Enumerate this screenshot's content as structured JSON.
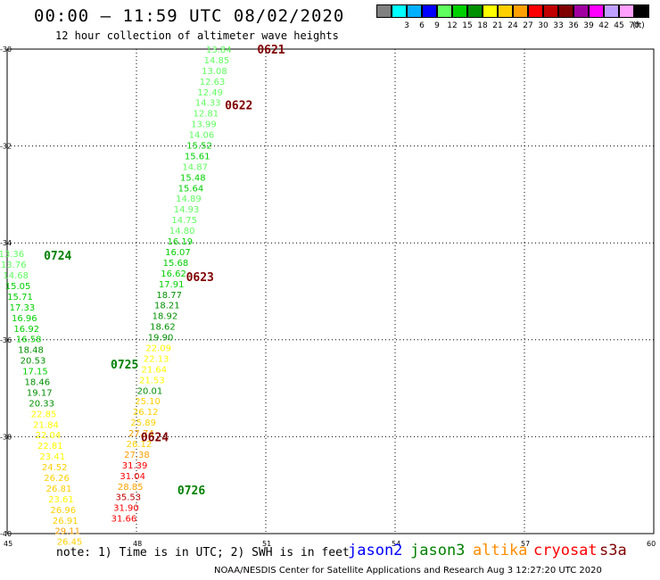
{
  "header": {
    "title": "00:00 – 11:59 UTC 08/02/2020",
    "subtitle": "12 hour collection of altimeter wave heights"
  },
  "legend": {
    "unit": "(ft)",
    "bins": [
      {
        "label": "",
        "color": "#808080"
      },
      {
        "label": "3",
        "color": "#00ffff"
      },
      {
        "label": "6",
        "color": "#00b0ff"
      },
      {
        "label": "9",
        "color": "#0000ff"
      },
      {
        "label": "12",
        "color": "#60ff60"
      },
      {
        "label": "15",
        "color": "#00d000"
      },
      {
        "label": "18",
        "color": "#009000"
      },
      {
        "label": "21",
        "color": "#ffff00"
      },
      {
        "label": "24",
        "color": "#ffd000"
      },
      {
        "label": "27",
        "color": "#ffa000"
      },
      {
        "label": "30",
        "color": "#ff0000"
      },
      {
        "label": "33",
        "color": "#c00000"
      },
      {
        "label": "36",
        "color": "#800000"
      },
      {
        "label": "39",
        "color": "#a000a0"
      },
      {
        "label": "42",
        "color": "#ff00ff"
      },
      {
        "label": "45",
        "color": "#c0a0ff"
      },
      {
        "label": "70",
        "color": "#ffa0ff"
      },
      {
        "label": "",
        "color": "#000000"
      }
    ]
  },
  "axes": {
    "x_ticks": [
      "45",
      "48",
      "51",
      "54",
      "57",
      "60"
    ],
    "y_ticks": [
      "-30",
      "-32",
      "-34",
      "-36",
      "-38",
      "-40"
    ]
  },
  "time_labels": [
    {
      "text": "0621",
      "lon": 50.8,
      "lat": -30.0,
      "color": "#800000"
    },
    {
      "text": "0622",
      "lon": 50.05,
      "lat": -31.15,
      "color": "#800000"
    },
    {
      "text": "0623",
      "lon": 49.15,
      "lat": -34.7,
      "color": "#800000"
    },
    {
      "text": "0624",
      "lon": 48.1,
      "lat": -38.0,
      "color": "#800000"
    },
    {
      "text": "0724",
      "lon": 45.85,
      "lat": -34.25,
      "color": "#008000"
    },
    {
      "text": "0725",
      "lon": 47.4,
      "lat": -36.5,
      "color": "#008000"
    },
    {
      "text": "0726",
      "lon": 48.95,
      "lat": -39.1,
      "color": "#008000"
    }
  ],
  "tracks": [
    {
      "name": "0621–0624 pass",
      "points": [
        {
          "v": "13.84",
          "lon": 49.91,
          "lat": -30.0,
          "c": "#60ff60"
        },
        {
          "v": "14.85",
          "lon": 49.86,
          "lat": -30.22,
          "c": "#60ff60"
        },
        {
          "v": "13.08",
          "lon": 49.81,
          "lat": -30.44,
          "c": "#60ff60"
        },
        {
          "v": "12.63",
          "lon": 49.76,
          "lat": -30.66,
          "c": "#60ff60"
        },
        {
          "v": "12.49",
          "lon": 49.71,
          "lat": -30.88,
          "c": "#60ff60"
        },
        {
          "v": "14.33",
          "lon": 49.66,
          "lat": -31.1,
          "c": "#60ff60"
        },
        {
          "v": "12.81",
          "lon": 49.61,
          "lat": -31.32,
          "c": "#60ff60"
        },
        {
          "v": "13.99",
          "lon": 49.56,
          "lat": -31.54,
          "c": "#60ff60"
        },
        {
          "v": "14.06",
          "lon": 49.51,
          "lat": -31.76,
          "c": "#60ff60"
        },
        {
          "v": "15.52",
          "lon": 49.46,
          "lat": -31.98,
          "c": "#00d000"
        },
        {
          "v": "15.61",
          "lon": 49.41,
          "lat": -32.2,
          "c": "#00d000"
        },
        {
          "v": "14.87",
          "lon": 49.36,
          "lat": -32.42,
          "c": "#60ff60"
        },
        {
          "v": "15.48",
          "lon": 49.31,
          "lat": -32.64,
          "c": "#00d000"
        },
        {
          "v": "15.64",
          "lon": 49.26,
          "lat": -32.86,
          "c": "#00d000"
        },
        {
          "v": "14.89",
          "lon": 49.21,
          "lat": -33.08,
          "c": "#60ff60"
        },
        {
          "v": "14.93",
          "lon": 49.16,
          "lat": -33.3,
          "c": "#60ff60"
        },
        {
          "v": "14.75",
          "lon": 49.11,
          "lat": -33.52,
          "c": "#60ff60"
        },
        {
          "v": "14.80",
          "lon": 49.06,
          "lat": -33.74,
          "c": "#60ff60"
        },
        {
          "v": "16.19",
          "lon": 49.01,
          "lat": -33.96,
          "c": "#00d000"
        },
        {
          "v": "16.07",
          "lon": 48.96,
          "lat": -34.18,
          "c": "#00d000"
        },
        {
          "v": "15.68",
          "lon": 48.91,
          "lat": -34.4,
          "c": "#00d000"
        },
        {
          "v": "16.62",
          "lon": 48.86,
          "lat": -34.62,
          "c": "#00d000"
        },
        {
          "v": "17.91",
          "lon": 48.81,
          "lat": -34.84,
          "c": "#00d000"
        },
        {
          "v": "18.77",
          "lon": 48.76,
          "lat": -35.06,
          "c": "#009000"
        },
        {
          "v": "18.21",
          "lon": 48.71,
          "lat": -35.28,
          "c": "#009000"
        },
        {
          "v": "18.92",
          "lon": 48.66,
          "lat": -35.5,
          "c": "#009000"
        },
        {
          "v": "18.62",
          "lon": 48.61,
          "lat": -35.72,
          "c": "#009000"
        },
        {
          "v": "19.90",
          "lon": 48.56,
          "lat": -35.94,
          "c": "#009000"
        },
        {
          "v": "22.09",
          "lon": 48.51,
          "lat": -36.16,
          "c": "#ffff00"
        },
        {
          "v": "22.13",
          "lon": 48.46,
          "lat": -36.38,
          "c": "#ffff00"
        },
        {
          "v": "21.64",
          "lon": 48.41,
          "lat": -36.6,
          "c": "#ffff00"
        },
        {
          "v": "21.53",
          "lon": 48.36,
          "lat": -36.82,
          "c": "#ffff00"
        },
        {
          "v": "20.01",
          "lon": 48.31,
          "lat": -37.04,
          "c": "#009000"
        },
        {
          "v": "25.10",
          "lon": 48.26,
          "lat": -37.26,
          "c": "#ffd000"
        },
        {
          "v": "26.12",
          "lon": 48.21,
          "lat": -37.48,
          "c": "#ffd000"
        },
        {
          "v": "25.89",
          "lon": 48.16,
          "lat": -37.7,
          "c": "#ffd000"
        },
        {
          "v": "27.74",
          "lon": 48.11,
          "lat": -37.92,
          "c": "#ffa000"
        },
        {
          "v": "26.12",
          "lon": 48.06,
          "lat": -38.14,
          "c": "#ffd000"
        },
        {
          "v": "27.38",
          "lon": 48.01,
          "lat": -38.36,
          "c": "#ffa000"
        },
        {
          "v": "31.39",
          "lon": 47.96,
          "lat": -38.58,
          "c": "#ff0000"
        },
        {
          "v": "31.04",
          "lon": 47.91,
          "lat": -38.8,
          "c": "#ff0000"
        },
        {
          "v": "28.85",
          "lon": 47.86,
          "lat": -39.02,
          "c": "#ffa000"
        },
        {
          "v": "35.53",
          "lon": 47.81,
          "lat": -39.24,
          "c": "#c00000"
        },
        {
          "v": "31.90",
          "lon": 47.76,
          "lat": -39.46,
          "c": "#ff0000"
        },
        {
          "v": "31.66",
          "lon": 47.71,
          "lat": -39.68,
          "c": "#ff0000"
        }
      ]
    },
    {
      "name": "0724–0726 pass",
      "points": [
        {
          "v": "13.36",
          "lon": 45.1,
          "lat": -34.22,
          "c": "#60ff60"
        },
        {
          "v": "13.76",
          "lon": 45.15,
          "lat": -34.44,
          "c": "#60ff60"
        },
        {
          "v": "14.68",
          "lon": 45.2,
          "lat": -34.66,
          "c": "#60ff60"
        },
        {
          "v": "15.05",
          "lon": 45.25,
          "lat": -34.88,
          "c": "#00d000"
        },
        {
          "v": "15.71",
          "lon": 45.3,
          "lat": -35.1,
          "c": "#00d000"
        },
        {
          "v": "17.33",
          "lon": 45.35,
          "lat": -35.32,
          "c": "#00d000"
        },
        {
          "v": "16.96",
          "lon": 45.4,
          "lat": -35.54,
          "c": "#00d000"
        },
        {
          "v": "16.92",
          "lon": 45.45,
          "lat": -35.76,
          "c": "#00d000"
        },
        {
          "v": "16.58",
          "lon": 45.5,
          "lat": -35.98,
          "c": "#00d000"
        },
        {
          "v": "18.48",
          "lon": 45.55,
          "lat": -36.2,
          "c": "#009000"
        },
        {
          "v": "20.53",
          "lon": 45.6,
          "lat": -36.42,
          "c": "#009000"
        },
        {
          "v": "17.15",
          "lon": 45.65,
          "lat": -36.64,
          "c": "#00d000"
        },
        {
          "v": "18.46",
          "lon": 45.7,
          "lat": -36.86,
          "c": "#009000"
        },
        {
          "v": "19.17",
          "lon": 45.75,
          "lat": -37.08,
          "c": "#009000"
        },
        {
          "v": "20.33",
          "lon": 45.8,
          "lat": -37.3,
          "c": "#009000"
        },
        {
          "v": "22.85",
          "lon": 45.85,
          "lat": -37.52,
          "c": "#ffff00"
        },
        {
          "v": "21.84",
          "lon": 45.9,
          "lat": -37.74,
          "c": "#ffff00"
        },
        {
          "v": "22.04",
          "lon": 45.95,
          "lat": -37.96,
          "c": "#ffff00"
        },
        {
          "v": "22.81",
          "lon": 46.0,
          "lat": -38.18,
          "c": "#ffff00"
        },
        {
          "v": "23.41",
          "lon": 46.05,
          "lat": -38.4,
          "c": "#ffff00"
        },
        {
          "v": "24.52",
          "lon": 46.1,
          "lat": -38.62,
          "c": "#ffd000"
        },
        {
          "v": "26.26",
          "lon": 46.15,
          "lat": -38.84,
          "c": "#ffd000"
        },
        {
          "v": "26.81",
          "lon": 46.2,
          "lat": -39.06,
          "c": "#ffd000"
        },
        {
          "v": "23.61",
          "lon": 46.25,
          "lat": -39.28,
          "c": "#ffff00"
        },
        {
          "v": "26.96",
          "lon": 46.3,
          "lat": -39.5,
          "c": "#ffd000"
        },
        {
          "v": "26.91",
          "lon": 46.35,
          "lat": -39.72,
          "c": "#ffd000"
        },
        {
          "v": "29.11",
          "lon": 46.4,
          "lat": -39.94,
          "c": "#ffa000"
        },
        {
          "v": "26.45",
          "lon": 46.45,
          "lat": -40.16,
          "c": "#ffd000"
        }
      ]
    }
  ],
  "note": "note: 1) Time is in UTC; 2) SWH is in feet",
  "satellites": [
    {
      "name": "jason2",
      "color": "#0000ff"
    },
    {
      "name": "jason3",
      "color": "#008000"
    },
    {
      "name": "altika",
      "color": "#ff8c00"
    },
    {
      "name": "cryosat",
      "color": "#ff0000"
    },
    {
      "name": "s3a",
      "color": "#800000"
    }
  ],
  "credit": "NOAA/NESDIS Center for Satellite Applications and Research    Aug  3 12:27:20 UTC 2020"
}
